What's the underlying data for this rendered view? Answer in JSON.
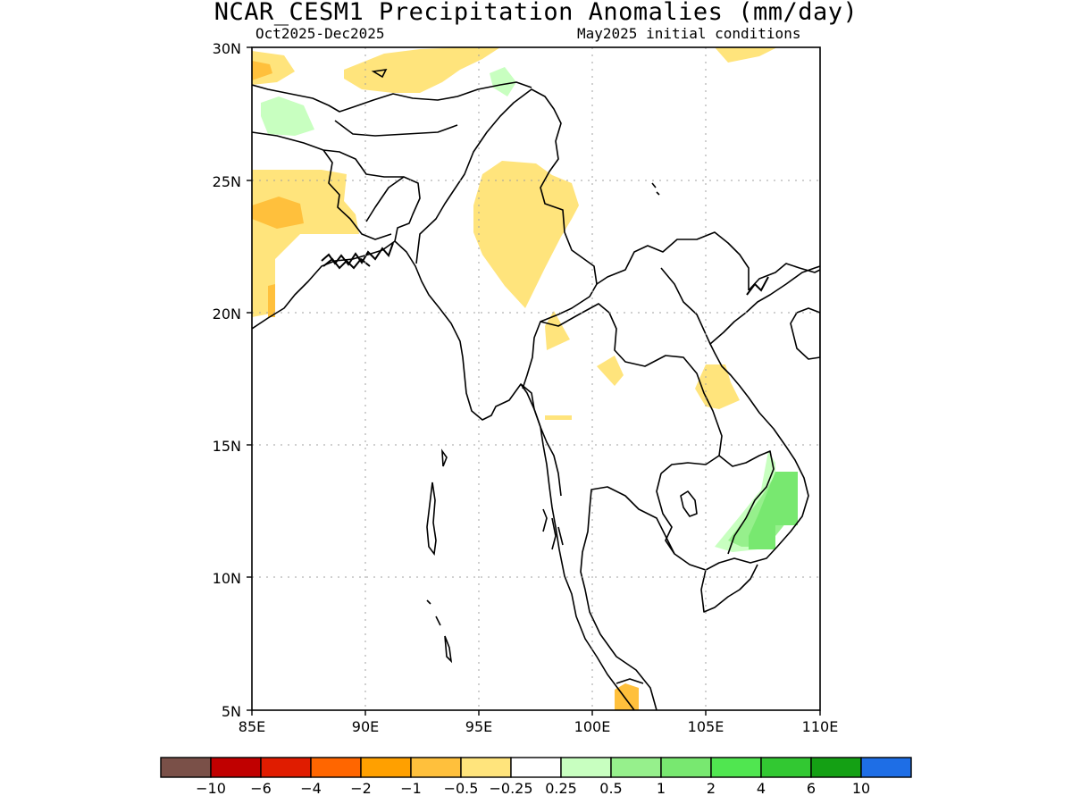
{
  "title": "NCAR_CESM1 Precipitation Anomalies (mm/day)",
  "period": "Oct2025-Dec2025",
  "initial_conditions": "May2025 initial conditions",
  "map": {
    "lon_range": [
      85,
      110
    ],
    "lat_range": [
      5,
      30
    ],
    "lon_ticks": [
      "85E",
      "90E",
      "95E",
      "100E",
      "105E",
      "110E"
    ],
    "lat_ticks": [
      "30N",
      "25N",
      "20N",
      "15N",
      "10N",
      "5N"
    ],
    "grid": "dotted"
  },
  "colorbar": {
    "colors": [
      "#7a5048",
      "#c00000",
      "#e01c00",
      "#ff6600",
      "#ffa000",
      "#ffc03c",
      "#ffe47c",
      "#ffffff",
      "#c8ffc0",
      "#96f08c",
      "#78e870",
      "#50e650",
      "#32c832",
      "#14a014",
      "#1e6ee6"
    ],
    "labels": [
      "-10",
      "-6",
      "-4",
      "-2",
      "-1",
      "-0.5",
      "-0.25",
      "0.25",
      "0.5",
      "1",
      "2",
      "4",
      "6",
      "10"
    ]
  },
  "anomaly_colors": {
    "dry_light": "#ffe47c",
    "dry_moderate": "#ffc03c",
    "wet_light": "#c8ffc0",
    "wet_moderate": "#96f08c",
    "wet_strong": "#78e870"
  }
}
